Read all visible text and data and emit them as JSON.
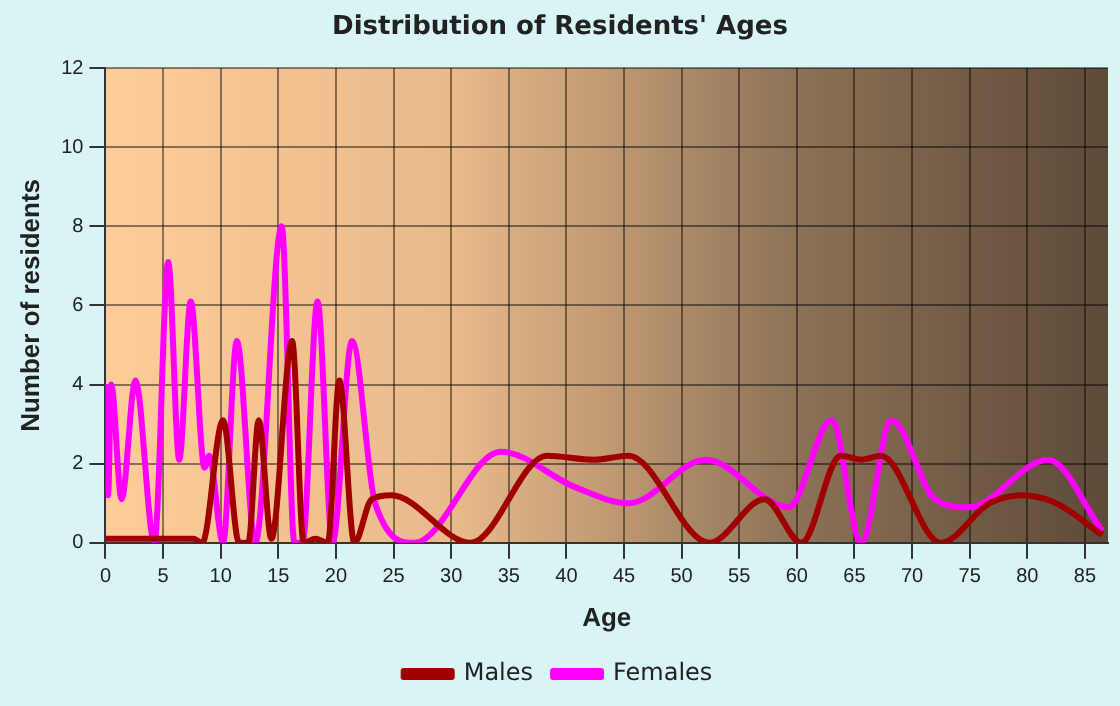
{
  "chart_data": {
    "type": "line",
    "title": "Distribution of Residents' Ages",
    "xlabel": "Age",
    "ylabel": "Number of residents",
    "xlim": [
      0,
      87
    ],
    "xticks": [
      0,
      5,
      10,
      15,
      20,
      25,
      30,
      35,
      40,
      45,
      50,
      55,
      60,
      65,
      70,
      75,
      80,
      85
    ],
    "ylim": [
      0,
      12
    ],
    "yticks": [
      0,
      2,
      4,
      6,
      8,
      10,
      12
    ],
    "grid": true,
    "legend": "bottom",
    "marker": "none",
    "line_style": "solid",
    "series": [
      {
        "name": "Males",
        "color": "#a00000",
        "x": [
          0,
          7.6,
          8.4,
          10.2,
          11.6,
          12.4,
          13.3,
          14.4,
          16.2,
          17.2,
          18.2,
          19.3,
          20.3,
          21.6,
          23.1,
          24.8,
          31.7,
          38.3,
          42.4,
          45.4,
          52.4,
          57.2,
          60.4,
          63.8,
          65.6,
          67.3,
          72.5,
          76.7,
          79.5,
          82.5,
          86.5
        ],
        "values": [
          0.1,
          0.1,
          0,
          3.1,
          0,
          0,
          3.1,
          0.1,
          5.1,
          0,
          0.1,
          0,
          4.1,
          0,
          1.1,
          1.2,
          0,
          2.2,
          2.1,
          2.2,
          0,
          1.1,
          0,
          2.2,
          2.1,
          2.2,
          0,
          1,
          1.2,
          1,
          0.2
        ]
      },
      {
        "name": "Females",
        "color": "#ff00ff",
        "x": [
          0,
          0.23,
          0.5,
          1.4,
          2.6,
          4.25,
          5.45,
          6.4,
          7.4,
          8.6,
          9,
          10.2,
          11.4,
          13,
          15.3,
          16.4,
          17.1,
          18.4,
          19.7,
          21.4,
          23.4,
          26.8,
          34.3,
          40.8,
          45.4,
          52.1,
          59.3,
          63,
          65.6,
          68.2,
          72,
          74.9,
          81.8,
          86.5
        ],
        "values": [
          4,
          1.2,
          4,
          1.1,
          4.1,
          0,
          7.1,
          2.1,
          6.1,
          1.9,
          2.2,
          0,
          5.1,
          0,
          8,
          0,
          0,
          6.1,
          0,
          5.1,
          1,
          0,
          2.3,
          1.4,
          1,
          2.1,
          0.9,
          3.1,
          0,
          3.1,
          1.1,
          0.9,
          2.1,
          0.3
        ]
      }
    ]
  }
}
